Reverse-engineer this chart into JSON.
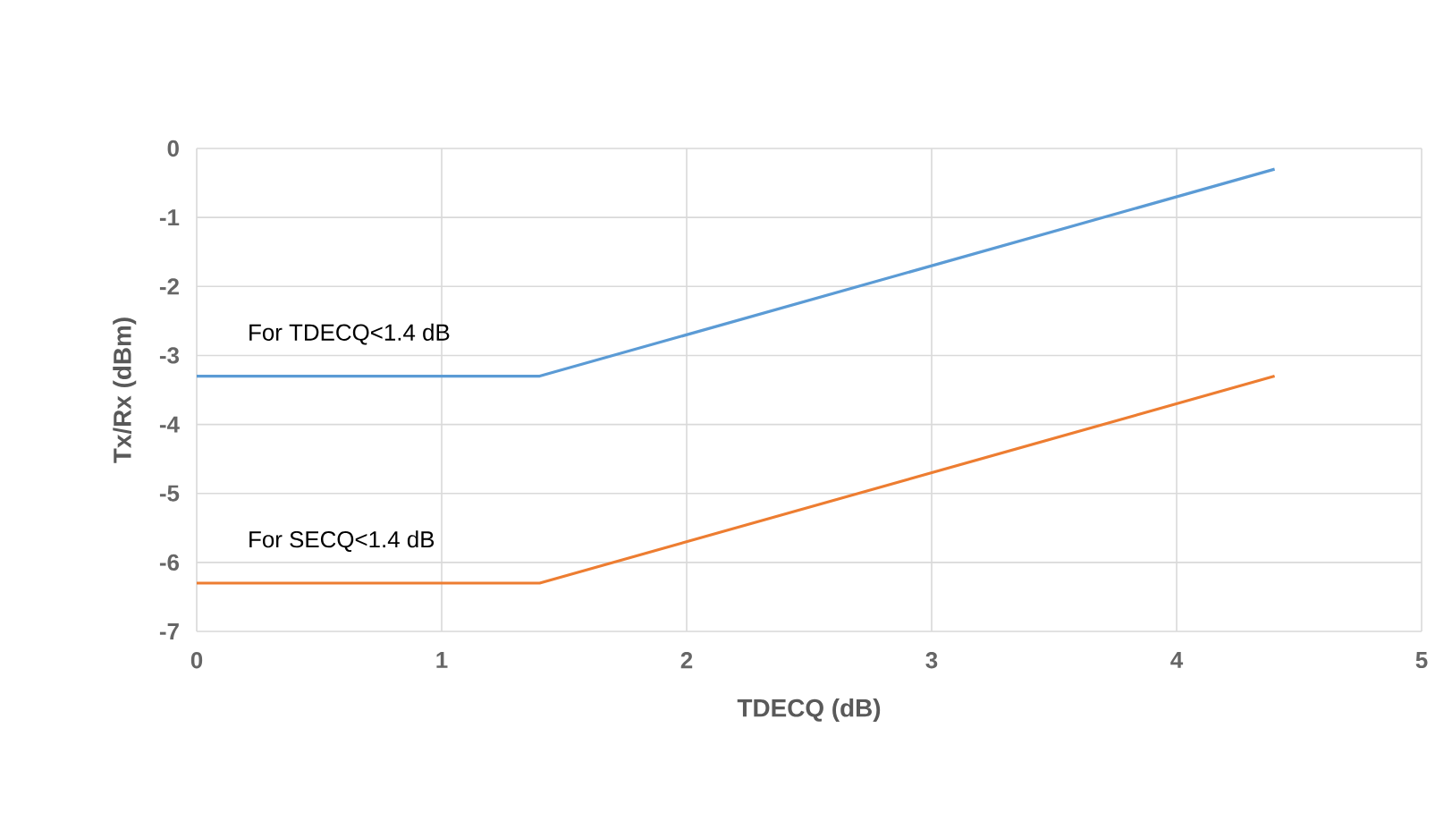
{
  "chart_data": {
    "type": "line",
    "xlabel": "TDECQ (dB)",
    "ylabel": "Tx/Rx (dBm)",
    "x": [
      0,
      1.3,
      1.4,
      4.4
    ],
    "series": [
      {
        "name": "For TDECQ<1.4 dB",
        "color": "#5b9bd5",
        "values": [
          -3.3,
          -3.3,
          -3.3,
          -0.3
        ]
      },
      {
        "name": "For SECQ<1.4 dB",
        "color": "#ed7d31",
        "values": [
          -6.3,
          -6.3,
          -6.3,
          -3.3
        ]
      }
    ],
    "xlim": [
      0,
      5
    ],
    "ylim": [
      -7,
      0
    ],
    "xticks": [
      0,
      1,
      2,
      3,
      4,
      5
    ],
    "yticks": [
      -7,
      -6,
      -5,
      -4,
      -3,
      -2,
      -1,
      0
    ],
    "grid": true,
    "legend": false,
    "marker": "none",
    "line_style": "solid"
  }
}
